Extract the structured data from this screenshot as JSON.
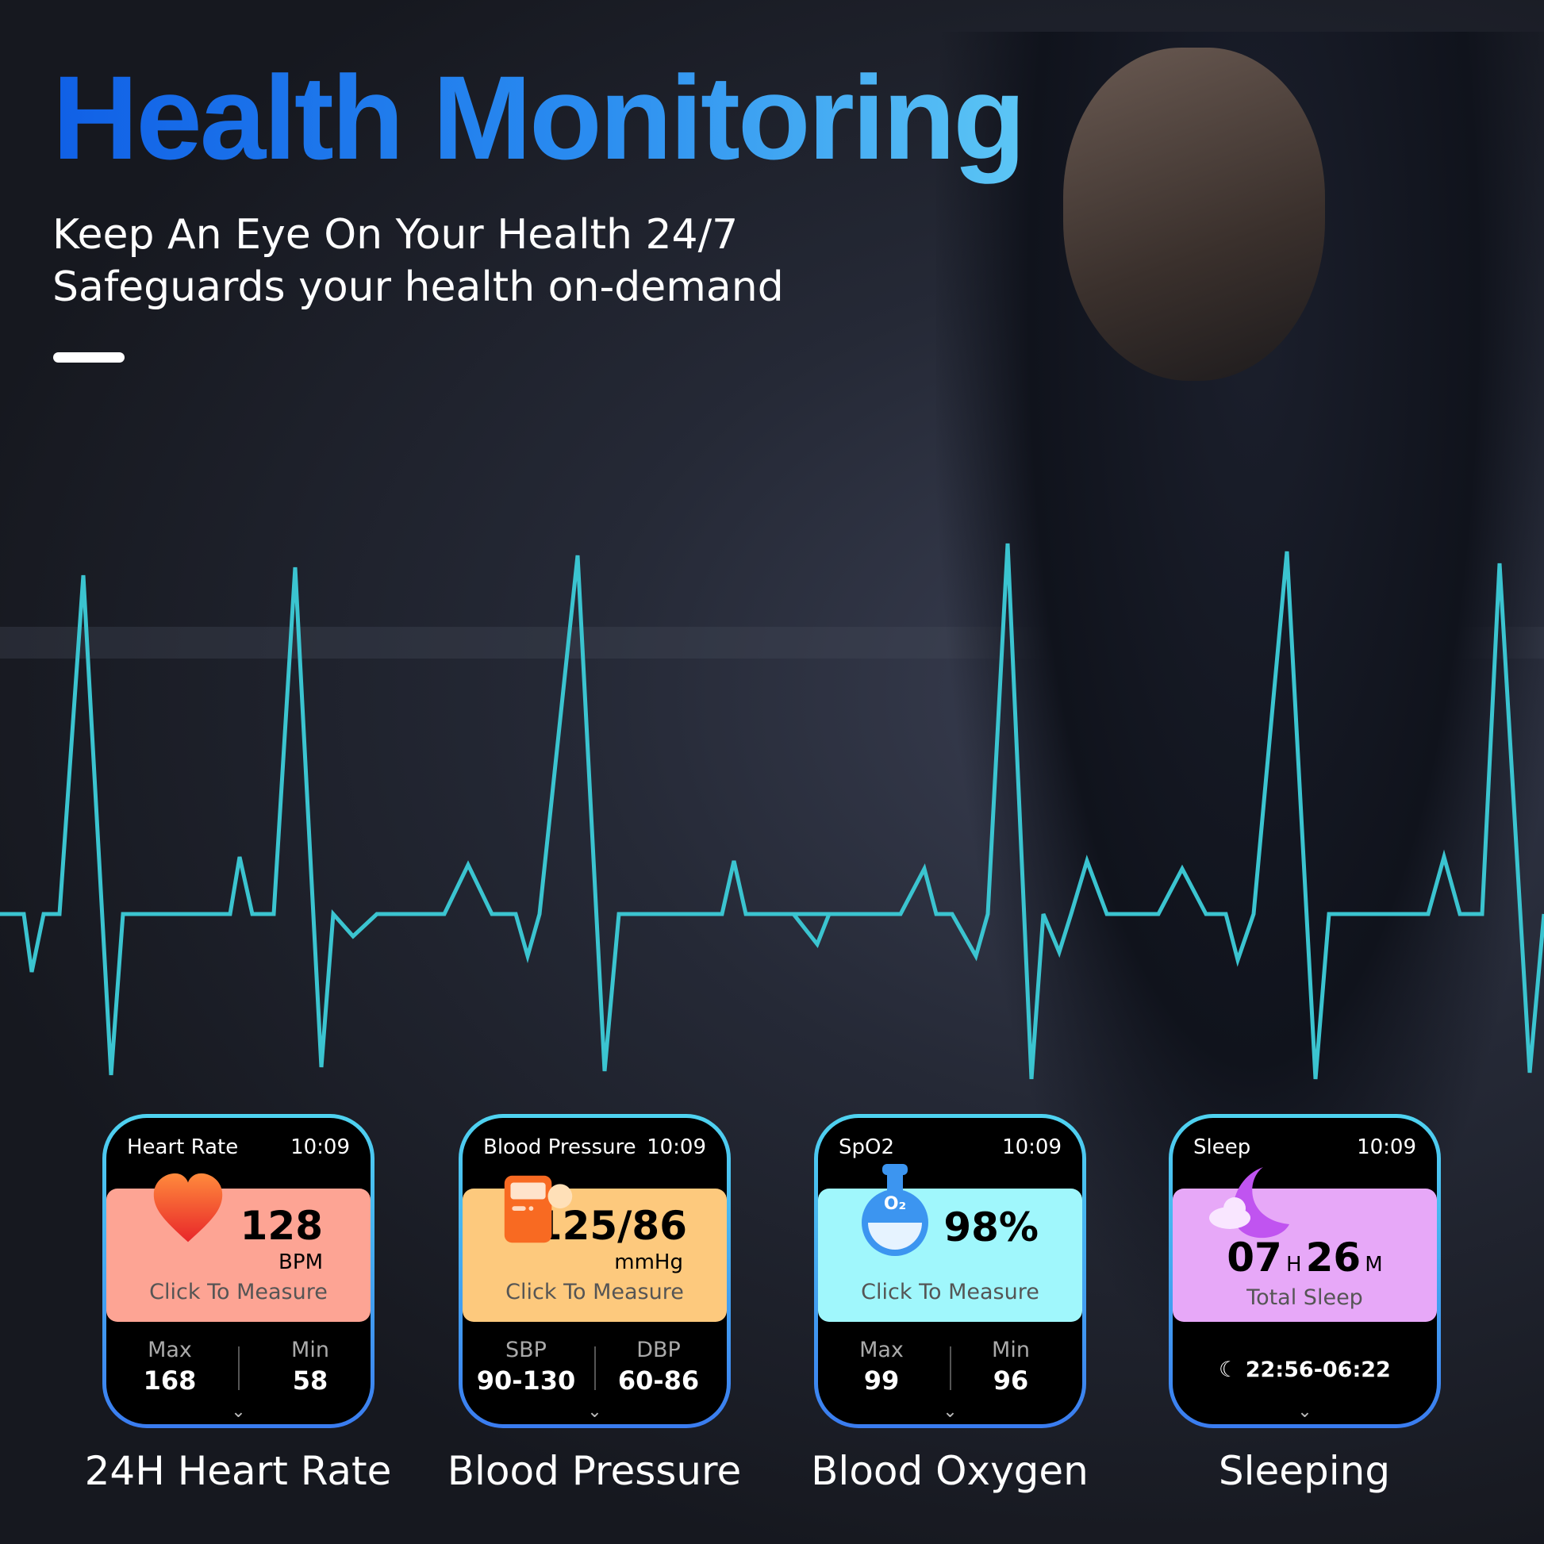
{
  "header": {
    "title": "Health Monitoring",
    "subtitle_lines": [
      "Keep An Eye On Your Health 24/7",
      "Safeguards your health on-demand"
    ]
  },
  "colors": {
    "title_start": "#1060e6",
    "title_end": "#5cc6f5",
    "ecg_top": "#2a5fe0",
    "ecg_bottom": "#3bc4d0",
    "card_border_top": "#4fd3f0",
    "card_border_bottom": "#3a7cf0"
  },
  "cards": [
    {
      "title": "Heart Rate",
      "time": "10:09",
      "icon": "heart-icon",
      "value": "128",
      "unit": "BPM",
      "action": "Click To Measure",
      "panel_color": "#fda494",
      "stats": [
        {
          "label": "Max",
          "value": "168"
        },
        {
          "label": "Min",
          "value": "58"
        }
      ],
      "caption": "24H Heart Rate"
    },
    {
      "title": "Blood Pressure",
      "time": "10:09",
      "icon": "blood-pressure-monitor-icon",
      "value": "125/86",
      "unit": "mmHg",
      "action": "Click To Measure",
      "panel_color": "#fdc97d",
      "stats": [
        {
          "label": "SBP",
          "value": "90-130"
        },
        {
          "label": "DBP",
          "value": "60-86"
        }
      ],
      "caption": "Blood Pressure"
    },
    {
      "title": "SpO2",
      "time": "10:09",
      "icon": "oxygen-flask-icon",
      "icon_text": "O₂",
      "value": "98%",
      "action": "Click To Measure",
      "panel_color": "#a0f7fc",
      "stats": [
        {
          "label": "Max",
          "value": "99"
        },
        {
          "label": "Min",
          "value": "96"
        }
      ],
      "caption": "Blood Oxygen"
    },
    {
      "title": "Sleep",
      "time": "10:09",
      "icon": "moon-cloud-icon",
      "hours": "07",
      "h_unit": "H",
      "minutes": "26",
      "m_unit": "M",
      "summary": "Total Sleep",
      "panel_color": "#e7a8f8",
      "range": "22:56-06:22",
      "caption": "Sleeping"
    }
  ]
}
